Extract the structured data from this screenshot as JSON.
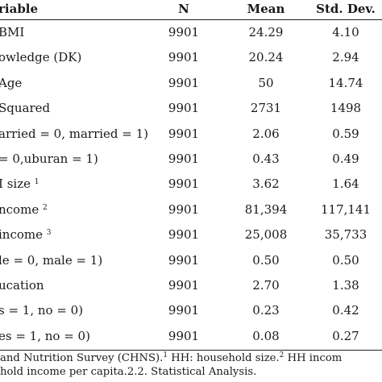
{
  "table": {
    "headers": {
      "variable": "riable",
      "n": "N",
      "mean": "Mean",
      "sd": "Std. Dev."
    },
    "rows": [
      {
        "variable": "BMI",
        "sup": "",
        "n": "9901",
        "mean": "24.29",
        "sd": "4.10"
      },
      {
        "variable": "owledge (DK)",
        "sup": "",
        "n": "9901",
        "mean": "20.24",
        "sd": "2.94"
      },
      {
        "variable": "Age",
        "sup": "",
        "n": "9901",
        "mean": "50",
        "sd": "14.74"
      },
      {
        "variable": "Squared",
        "sup": "",
        "n": "9901",
        "mean": "2731",
        "sd": "1498"
      },
      {
        "variable": "arried = 0, married = 1)",
        "sup": "",
        "n": "9901",
        "mean": "2.06",
        "sd": "0.59"
      },
      {
        "variable": "= 0,uburan = 1)",
        "sup": "",
        "n": "9901",
        "mean": "0.43",
        "sd": "0.49"
      },
      {
        "variable": "I size",
        "sup": "1",
        "n": "9901",
        "mean": "3.62",
        "sd": "1.64"
      },
      {
        "variable": "ncome",
        "sup": "2",
        "n": "9901",
        "mean": "81,394",
        "sd": "117,141"
      },
      {
        "variable": "income",
        "sup": "3",
        "n": "9901",
        "mean": "25,008",
        "sd": "35,733"
      },
      {
        "variable": "le = 0, male = 1)",
        "sup": "",
        "n": "9901",
        "mean": "0.50",
        "sd": "0.50"
      },
      {
        "variable": "ucation",
        "sup": "",
        "n": "9901",
        "mean": "2.70",
        "sd": "1.38"
      },
      {
        "variable": "s = 1, no = 0)",
        "sup": "",
        "n": "9901",
        "mean": "0.23",
        "sd": "0.42"
      },
      {
        "variable": "es = 1, no = 0)",
        "sup": "",
        "n": "9901",
        "mean": "0.08",
        "sd": "0.27"
      }
    ]
  },
  "footnote": {
    "line1_a": " and Nutrition Survey (CHNS).",
    "line1_sup1": "1",
    "line1_b": " HH: household size.",
    "line1_sup2": "2",
    "line1_c": " HH incom",
    "line2": "hold income per capita.2.2. Statistical Analysis."
  }
}
